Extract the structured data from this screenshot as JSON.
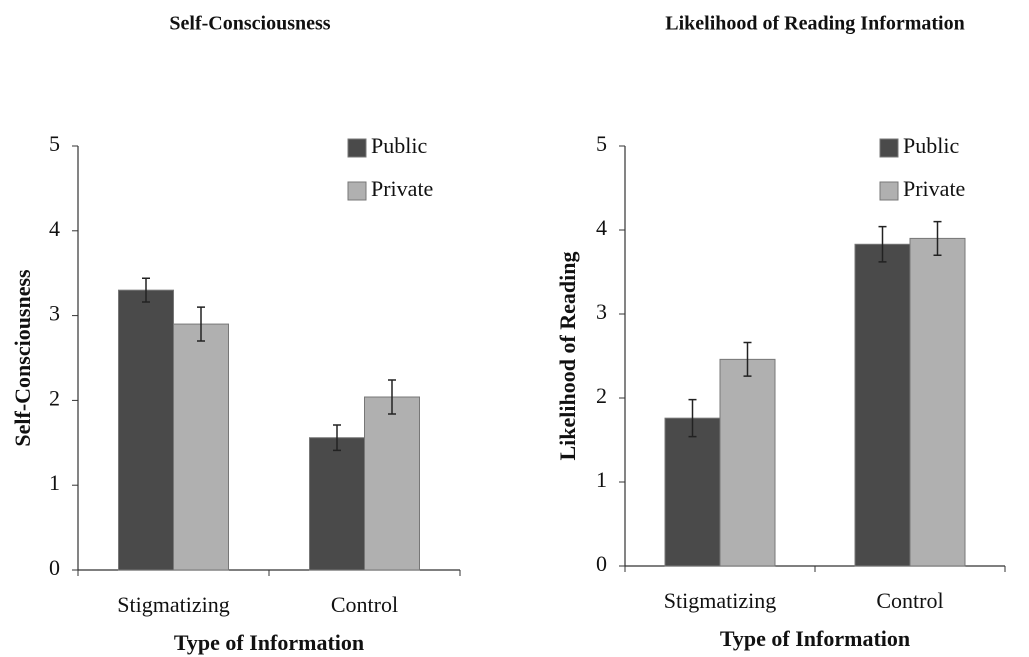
{
  "chart_data": [
    {
      "type": "bar",
      "title": "Self-Consciousness",
      "x_label": "Type of Information",
      "y_label": "Self-Consciousness",
      "categories": [
        "Stigmatizing",
        "Control"
      ],
      "series": [
        {
          "name": "Public",
          "color": "#4a4a4a",
          "values": [
            3.3,
            1.56
          ],
          "errors": [
            0.14,
            0.15
          ]
        },
        {
          "name": "Private",
          "color": "#b0b0b0",
          "values": [
            2.9,
            2.04
          ],
          "errors": [
            0.2,
            0.2
          ]
        }
      ],
      "ylim": [
        0,
        5
      ],
      "yticks": [
        0,
        1,
        2,
        3,
        4,
        5
      ],
      "legend": "upper right"
    },
    {
      "type": "bar",
      "title": "Likelihood of Reading Information",
      "x_label": "Type of Information",
      "y_label": "Likelihood of Reading",
      "categories": [
        "Stigmatizing",
        "Control"
      ],
      "series": [
        {
          "name": "Public",
          "color": "#4a4a4a",
          "values": [
            1.76,
            3.83
          ],
          "errors": [
            0.22,
            0.21
          ]
        },
        {
          "name": "Private",
          "color": "#b0b0b0",
          "values": [
            2.46,
            3.9
          ],
          "errors": [
            0.2,
            0.2
          ]
        }
      ],
      "ylim": [
        0,
        5
      ],
      "yticks": [
        0,
        1,
        2,
        3,
        4,
        5
      ],
      "legend": "upper right"
    }
  ]
}
